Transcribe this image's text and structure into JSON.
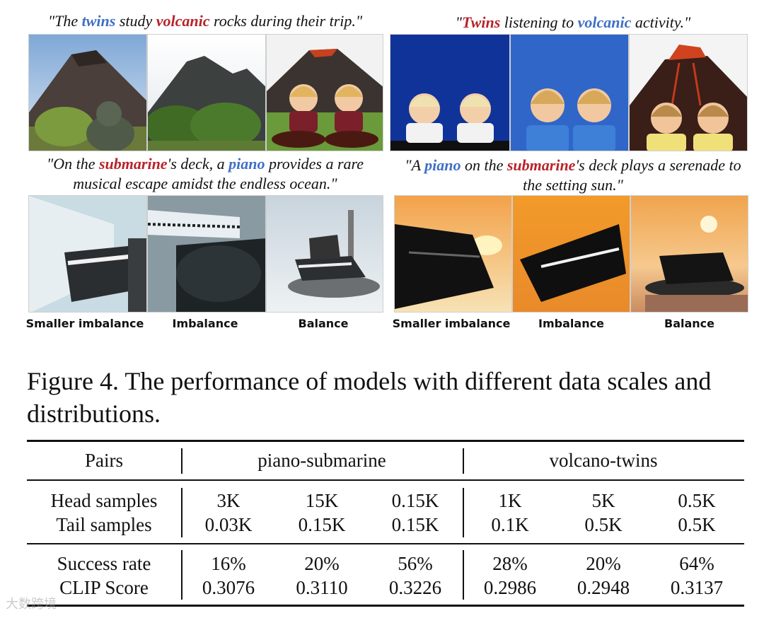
{
  "panels": [
    {
      "caption_parts": [
        {
          "t": "\"The ",
          "c": ""
        },
        {
          "t": "twins",
          "c": "blue"
        },
        {
          "t": " study ",
          "c": ""
        },
        {
          "t": "volcanic",
          "c": "red"
        },
        {
          "t": " rocks during their trip.\"",
          "c": ""
        }
      ]
    },
    {
      "caption_parts": [
        {
          "t": "\"",
          "c": ""
        },
        {
          "t": "Twins",
          "c": "red"
        },
        {
          "t": " listening to ",
          "c": ""
        },
        {
          "t": "volcanic",
          "c": "blue"
        },
        {
          "t": " activity.\"",
          "c": ""
        }
      ]
    },
    {
      "caption_parts": [
        {
          "t": "\"On the ",
          "c": ""
        },
        {
          "t": "submarine",
          "c": "red"
        },
        {
          "t": "'s deck, a ",
          "c": ""
        },
        {
          "t": "piano",
          "c": "blue"
        },
        {
          "t": " provides a rare musical escape amidst the endless ocean.\"",
          "c": ""
        }
      ]
    },
    {
      "caption_parts": [
        {
          "t": "\"A ",
          "c": ""
        },
        {
          "t": "piano",
          "c": "blue"
        },
        {
          "t": " on the ",
          "c": ""
        },
        {
          "t": "submarine",
          "c": "red"
        },
        {
          "t": "'s deck plays a serenade to the setting sun.\"",
          "c": ""
        }
      ]
    }
  ],
  "column_labels": {
    "left": [
      "Smaller imbalance",
      "Imbalance",
      "Balance"
    ],
    "right": [
      "Smaller imbalance",
      "Imbalance",
      "Balance"
    ]
  },
  "figure_caption": "Figure 4.  The performance of models with different data scales and distributions.",
  "table": {
    "header": {
      "pairs": "Pairs",
      "group1": "piano-submarine",
      "group2": "volcano-twins"
    },
    "rows": [
      {
        "label": "Head samples",
        "values": [
          "3K",
          "15K",
          "0.15K",
          "1K",
          "5K",
          "0.5K"
        ]
      },
      {
        "label": "Tail samples",
        "values": [
          "0.03K",
          "0.15K",
          "0.15K",
          "0.1K",
          "0.5K",
          "0.5K"
        ]
      },
      {
        "label": "Success rate",
        "values": [
          "16%",
          "20%",
          "56%",
          "28%",
          "20%",
          "64%"
        ]
      },
      {
        "label": "CLIP Score",
        "values": [
          "0.3076",
          "0.3110",
          "0.3226",
          "0.2986",
          "0.2948",
          "0.3137"
        ]
      }
    ]
  },
  "watermark": "大数跨境"
}
